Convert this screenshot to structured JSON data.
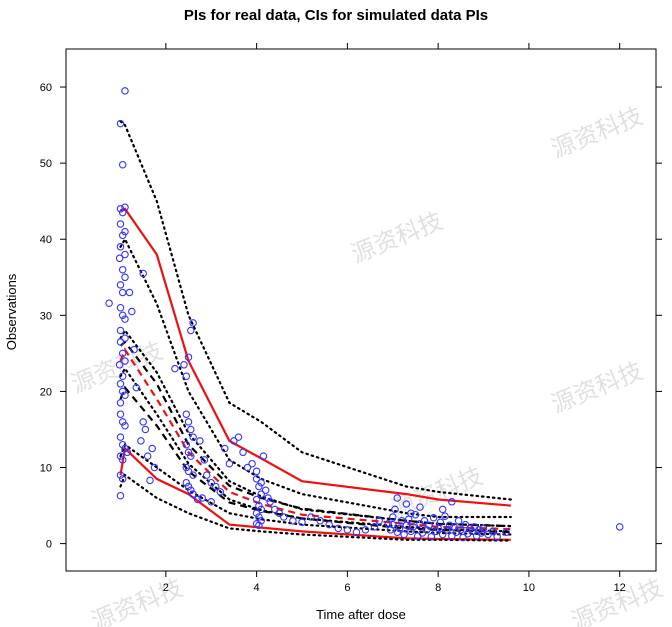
{
  "chart_data": {
    "type": "scatter",
    "title": "PIs for real data, CIs for simulated data PIs",
    "xlabel": "Time after dose",
    "ylabel": "Observations",
    "xlim": [
      -0.2,
      12.8
    ],
    "ylim": [
      -3.6,
      65.0
    ],
    "x_ticks": [
      2,
      4,
      6,
      8,
      10,
      12
    ],
    "y_ticks": [
      0,
      10,
      20,
      30,
      40,
      50,
      60
    ],
    "grid": false,
    "legend": "none",
    "watermark_text": "源资科技",
    "observations_color": "#3333ff",
    "series": [
      {
        "style": "red-solid",
        "color": "#ee1111",
        "x": [
          1.0,
          1.1,
          1.8,
          2.5,
          3.4,
          4.1,
          5.0,
          7.3,
          8.0,
          9.6
        ],
        "y": [
          43.8,
          44.0,
          38.0,
          24.0,
          13.5,
          11.2,
          8.2,
          6.5,
          5.8,
          5.0
        ]
      },
      {
        "style": "red-solid",
        "color": "#ee1111",
        "x": [
          1.0,
          1.1,
          1.8,
          2.5,
          3.4,
          4.1,
          5.0,
          7.3,
          8.0,
          9.6
        ],
        "y": [
          9.0,
          12.5,
          8.5,
          6.5,
          2.5,
          2.1,
          1.6,
          0.7,
          0.6,
          0.5
        ]
      },
      {
        "style": "red-dash",
        "color": "#ee1111",
        "x": [
          1.0,
          1.1,
          1.8,
          2.5,
          3.4,
          4.1,
          5.0,
          7.3,
          8.0,
          9.6
        ],
        "y": [
          24.0,
          25.5,
          19.0,
          12.0,
          6.8,
          5.2,
          3.8,
          2.6,
          2.2,
          1.9
        ]
      },
      {
        "style": "black-dot",
        "color": "#000000",
        "x": [
          1.0,
          1.1,
          1.8,
          2.5,
          3.4,
          4.1,
          5.0,
          7.3,
          8.0,
          9.6
        ],
        "y": [
          55.5,
          55.0,
          45.0,
          30.0,
          18.5,
          16.0,
          12.0,
          7.5,
          6.8,
          5.8
        ]
      },
      {
        "style": "black-dot",
        "color": "#000000",
        "x": [
          1.0,
          1.1,
          1.8,
          2.5,
          3.4,
          4.1,
          5.0,
          7.3,
          8.0,
          9.6
        ],
        "y": [
          39.0,
          40.0,
          31.5,
          20.0,
          11.0,
          8.5,
          6.5,
          4.0,
          3.5,
          3.5
        ]
      },
      {
        "style": "black-dot",
        "color": "#000000",
        "x": [
          1.0,
          1.1,
          1.8,
          2.5,
          3.4,
          4.1,
          5.0,
          7.3,
          8.0,
          9.6
        ],
        "y": [
          27.0,
          28.0,
          22.5,
          14.5,
          8.2,
          6.2,
          4.5,
          3.0,
          2.6,
          2.3
        ]
      },
      {
        "style": "black-dot",
        "color": "#000000",
        "x": [
          1.0,
          1.1,
          1.8,
          2.5,
          3.4,
          4.1,
          5.0,
          7.3,
          8.0,
          9.6
        ],
        "y": [
          22.0,
          23.0,
          17.0,
          10.5,
          5.8,
          4.4,
          3.3,
          2.2,
          1.9,
          1.6
        ]
      },
      {
        "style": "black-dot",
        "color": "#000000",
        "x": [
          1.0,
          1.1,
          1.8,
          2.5,
          3.4,
          4.1,
          5.0,
          7.3,
          8.0,
          9.6
        ],
        "y": [
          11.5,
          13.0,
          10.0,
          7.0,
          4.0,
          3.2,
          2.5,
          1.6,
          1.4,
          1.2
        ]
      },
      {
        "style": "black-dot",
        "color": "#000000",
        "x": [
          1.0,
          1.1,
          1.8,
          2.5,
          3.4,
          4.1,
          5.0,
          7.3,
          8.0,
          9.6
        ],
        "y": [
          7.5,
          9.0,
          6.0,
          4.0,
          2.0,
          1.6,
          1.2,
          0.5,
          0.5,
          0.4
        ]
      },
      {
        "style": "black-dash",
        "color": "#000000",
        "x": [
          1.0,
          1.1,
          1.8,
          2.5,
          3.4,
          4.1,
          5.0,
          7.3,
          8.0,
          9.6
        ],
        "y": [
          26.0,
          26.5,
          21.0,
          13.0,
          7.6,
          6.0,
          4.6,
          3.0,
          2.6,
          2.3
        ]
      },
      {
        "style": "black-dash",
        "color": "#000000",
        "x": [
          1.0,
          1.1,
          1.8,
          2.5,
          3.4,
          4.1,
          5.0,
          7.3,
          8.0,
          9.6
        ],
        "y": [
          19.0,
          20.5,
          15.5,
          9.5,
          5.4,
          4.3,
          3.3,
          2.0,
          1.8,
          1.5
        ]
      }
    ],
    "observations": [
      [
        0.75,
        31.6
      ],
      [
        1.0,
        55.2
      ],
      [
        1.1,
        59.5
      ],
      [
        1.05,
        49.8
      ],
      [
        1.0,
        44.0
      ],
      [
        1.05,
        43.5
      ],
      [
        1.1,
        44.2
      ],
      [
        1.0,
        42.0
      ],
      [
        1.0,
        39.0
      ],
      [
        1.05,
        40.5
      ],
      [
        1.1,
        41.0
      ],
      [
        0.98,
        37.5
      ],
      [
        1.05,
        36.0
      ],
      [
        1.1,
        38.0
      ],
      [
        1.0,
        34.0
      ],
      [
        1.05,
        33.0
      ],
      [
        1.1,
        35.0
      ],
      [
        1.0,
        31.0
      ],
      [
        1.05,
        30.0
      ],
      [
        1.0,
        28.0
      ],
      [
        1.1,
        29.5
      ],
      [
        1.0,
        26.5
      ],
      [
        1.05,
        25.0
      ],
      [
        1.1,
        27.0
      ],
      [
        0.98,
        23.5
      ],
      [
        1.05,
        22.0
      ],
      [
        1.1,
        24.0
      ],
      [
        1.0,
        21.0
      ],
      [
        1.05,
        20.0
      ],
      [
        1.0,
        18.5
      ],
      [
        1.1,
        19.5
      ],
      [
        1.0,
        17.0
      ],
      [
        1.05,
        16.0
      ],
      [
        1.1,
        15.5
      ],
      [
        1.0,
        14.0
      ],
      [
        1.05,
        13.0
      ],
      [
        1.1,
        12.5
      ],
      [
        1.0,
        11.5
      ],
      [
        1.05,
        11.0
      ],
      [
        1.0,
        9.0
      ],
      [
        1.05,
        8.5
      ],
      [
        1.0,
        6.3
      ],
      [
        1.15,
        12.0
      ],
      [
        1.2,
        33.0
      ],
      [
        1.25,
        30.5
      ],
      [
        1.3,
        25.5
      ],
      [
        1.35,
        20.5
      ],
      [
        1.45,
        13.5
      ],
      [
        1.5,
        16.0
      ],
      [
        1.55,
        15.0
      ],
      [
        1.6,
        11.5
      ],
      [
        1.7,
        12.5
      ],
      [
        1.75,
        10.0
      ],
      [
        1.65,
        8.3
      ],
      [
        1.5,
        35.5
      ],
      [
        2.4,
        23.5
      ],
      [
        2.45,
        22.0
      ],
      [
        2.5,
        24.5
      ],
      [
        2.55,
        28.0
      ],
      [
        2.6,
        29.0
      ],
      [
        2.45,
        17.0
      ],
      [
        2.5,
        16.0
      ],
      [
        2.55,
        15.0
      ],
      [
        2.6,
        14.0
      ],
      [
        2.45,
        13.0
      ],
      [
        2.5,
        12.0
      ],
      [
        2.55,
        11.5
      ],
      [
        2.45,
        10.0
      ],
      [
        2.5,
        9.5
      ],
      [
        2.6,
        9.0
      ],
      [
        2.45,
        8.0
      ],
      [
        2.5,
        7.5
      ],
      [
        2.55,
        7.0
      ],
      [
        2.6,
        6.5
      ],
      [
        2.7,
        5.8
      ],
      [
        2.2,
        23.0
      ],
      [
        2.75,
        13.5
      ],
      [
        2.85,
        11.0
      ],
      [
        2.9,
        9.0
      ],
      [
        3.0,
        8.0
      ],
      [
        3.1,
        7.5
      ],
      [
        3.2,
        6.8
      ],
      [
        3.3,
        12.5
      ],
      [
        3.4,
        10.5
      ],
      [
        3.5,
        13.5
      ],
      [
        3.6,
        14.0
      ],
      [
        3.7,
        12.0
      ],
      [
        3.8,
        10.0
      ],
      [
        2.8,
        6.0
      ],
      [
        3.0,
        5.5
      ],
      [
        3.9,
        10.5
      ],
      [
        4.0,
        9.5
      ],
      [
        4.0,
        8.5
      ],
      [
        4.05,
        7.5
      ],
      [
        4.1,
        6.5
      ],
      [
        4.0,
        5.8
      ],
      [
        4.05,
        5.0
      ],
      [
        4.1,
        4.5
      ],
      [
        4.0,
        4.0
      ],
      [
        4.05,
        3.5
      ],
      [
        4.1,
        3.0
      ],
      [
        4.0,
        2.6
      ],
      [
        4.05,
        2.4
      ],
      [
        4.1,
        8.0
      ],
      [
        4.15,
        11.5
      ],
      [
        4.2,
        7.0
      ],
      [
        4.25,
        6.0
      ],
      [
        4.3,
        5.5
      ],
      [
        4.4,
        4.5
      ],
      [
        4.5,
        4.0
      ],
      [
        4.6,
        3.5
      ],
      [
        4.8,
        3.0
      ],
      [
        5.0,
        2.8
      ],
      [
        5.2,
        3.5
      ],
      [
        5.4,
        3.0
      ],
      [
        5.6,
        2.5
      ],
      [
        5.8,
        2.0
      ],
      [
        6.0,
        1.8
      ],
      [
        6.2,
        1.5
      ],
      [
        6.4,
        1.8
      ],
      [
        6.6,
        2.2
      ],
      [
        6.7,
        3.0
      ],
      [
        6.9,
        2.6
      ],
      [
        6.95,
        1.8
      ],
      [
        7.0,
        2.5
      ],
      [
        7.0,
        3.5
      ],
      [
        7.05,
        4.5
      ],
      [
        7.1,
        1.5
      ],
      [
        7.15,
        2.0
      ],
      [
        7.2,
        3.0
      ],
      [
        7.25,
        1.2
      ],
      [
        7.3,
        2.4
      ],
      [
        7.35,
        3.2
      ],
      [
        7.4,
        1.6
      ],
      [
        7.45,
        2.2
      ],
      [
        7.5,
        3.8
      ],
      [
        7.55,
        1.0
      ],
      [
        7.6,
        2.6
      ],
      [
        7.65,
        1.4
      ],
      [
        7.7,
        3.0
      ],
      [
        7.75,
        1.8
      ],
      [
        7.8,
        2.4
      ],
      [
        7.85,
        0.9
      ],
      [
        7.9,
        3.4
      ],
      [
        7.95,
        1.6
      ],
      [
        8.0,
        2.0
      ],
      [
        8.05,
        2.8
      ],
      [
        8.1,
        1.2
      ],
      [
        8.15,
        3.6
      ],
      [
        8.2,
        1.8
      ],
      [
        8.25,
        2.4
      ],
      [
        8.3,
        1.0
      ],
      [
        8.35,
        2.2
      ],
      [
        8.4,
        1.5
      ],
      [
        8.45,
        3.0
      ],
      [
        8.5,
        1.8
      ],
      [
        8.55,
        0.8
      ],
      [
        8.6,
        2.5
      ],
      [
        8.65,
        1.3
      ],
      [
        8.7,
        2.0
      ],
      [
        8.75,
        1.6
      ],
      [
        8.8,
        2.2
      ],
      [
        8.85,
        1.0
      ],
      [
        8.9,
        1.8
      ],
      [
        8.95,
        1.4
      ],
      [
        9.0,
        2.0
      ],
      [
        9.1,
        1.2
      ],
      [
        9.2,
        1.6
      ],
      [
        9.3,
        0.9
      ],
      [
        9.5,
        1.5
      ],
      [
        7.1,
        6.0
      ],
      [
        7.3,
        5.2
      ],
      [
        7.6,
        4.8
      ],
      [
        8.1,
        4.5
      ],
      [
        8.3,
        5.5
      ],
      [
        7.4,
        4.0
      ],
      [
        12.0,
        2.2
      ]
    ]
  }
}
